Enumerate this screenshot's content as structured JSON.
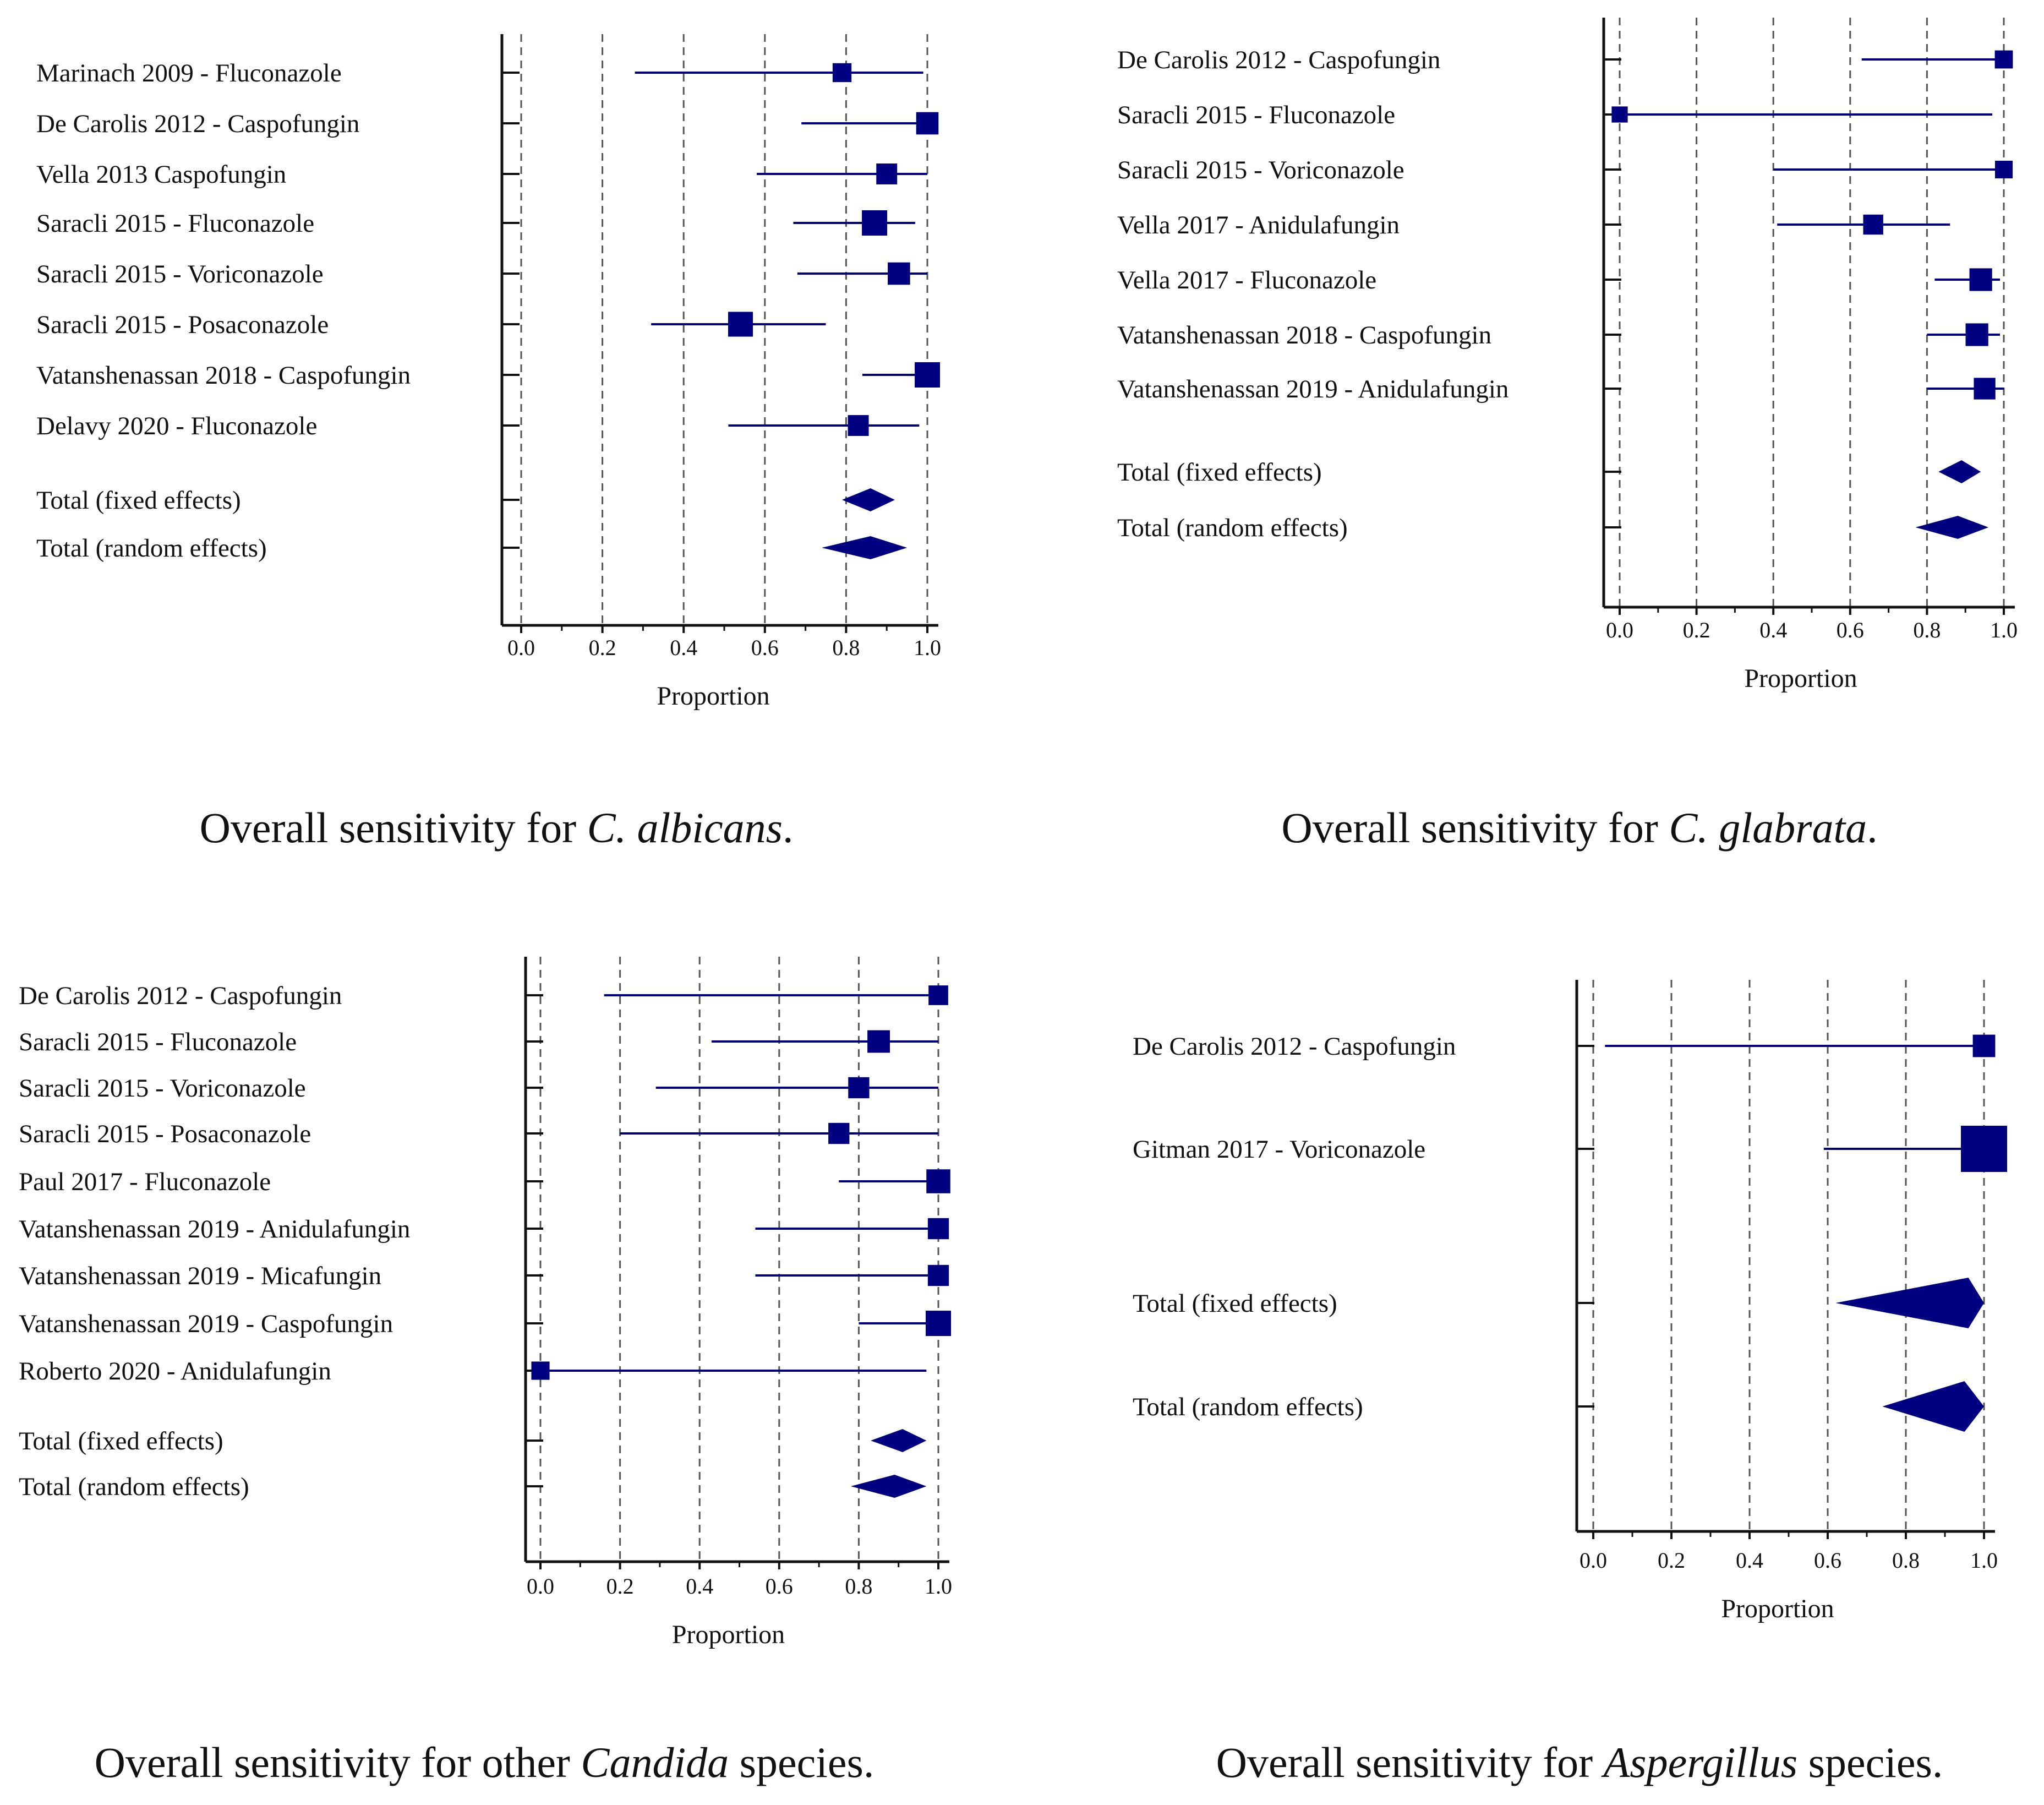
{
  "chart_data": [
    {
      "type": "forest",
      "caption": {
        "prefix": "Overall sensitivity for ",
        "species": "C. albicans",
        "suffix": "."
      },
      "xlabel": "Proportion",
      "xlim": [
        0,
        1
      ],
      "ticks": [
        "0.0",
        "0.2",
        "0.4",
        "0.6",
        "0.8",
        "1.0"
      ],
      "grid": "dashed vertical at 0.2 steps",
      "studies": [
        {
          "label": "Marinach 2009 - Fluconazole",
          "estimate": 0.79,
          "ci": [
            0.28,
            0.99
          ],
          "weight": 0.35
        },
        {
          "label": "De Carolis 2012 - Caspofungin",
          "estimate": 1.0,
          "ci": [
            0.69,
            1.0
          ],
          "weight": 0.7
        },
        {
          "label": "Vella 2013 Caspofungin",
          "estimate": 0.9,
          "ci": [
            0.58,
            1.0
          ],
          "weight": 0.55
        },
        {
          "label": "Saracli 2015 - Fluconazole",
          "estimate": 0.87,
          "ci": [
            0.67,
            0.97
          ],
          "weight": 1.0
        },
        {
          "label": "Saracli 2015 - Voriconazole",
          "estimate": 0.93,
          "ci": [
            0.68,
            1.0
          ],
          "weight": 0.7
        },
        {
          "label": "Saracli 2015 - Posaconazole",
          "estimate": 0.54,
          "ci": [
            0.32,
            0.75
          ],
          "weight": 0.95
        },
        {
          "label": "Vatanshenassan 2018 - Caspofungin",
          "estimate": 1.0,
          "ci": [
            0.84,
            1.0
          ],
          "weight": 1.0
        },
        {
          "label": "Delavy 2020 - Fluconazole",
          "estimate": 0.83,
          "ci": [
            0.51,
            0.98
          ],
          "weight": 0.55
        }
      ],
      "totals": [
        {
          "label": "Total (fixed effects)",
          "estimate": 0.86,
          "ci": [
            0.79,
            0.92
          ]
        },
        {
          "label": "Total (random effects)",
          "estimate": 0.86,
          "ci": [
            0.74,
            0.95
          ]
        }
      ]
    },
    {
      "type": "forest",
      "caption": {
        "prefix": "Overall sensitivity for ",
        "species": "C. glabrata",
        "suffix": "."
      },
      "xlabel": "Proportion",
      "xlim": [
        0,
        1
      ],
      "ticks": [
        "0.0",
        "0.2",
        "0.4",
        "0.6",
        "0.8",
        "1.0"
      ],
      "grid": "dashed vertical at 0.2 steps",
      "studies": [
        {
          "label": "De Carolis 2012 - Caspofungin",
          "estimate": 1.0,
          "ci": [
            0.63,
            1.0
          ],
          "weight": 0.45
        },
        {
          "label": "Saracli 2015 - Fluconazole",
          "estimate": 0.0,
          "ci": [
            0.0,
            0.97
          ],
          "weight": 0.3
        },
        {
          "label": "Saracli 2015 - Voriconazole",
          "estimate": 1.0,
          "ci": [
            0.4,
            1.0
          ],
          "weight": 0.42
        },
        {
          "label": "Vella 2017 - Anidulafungin",
          "estimate": 0.66,
          "ci": [
            0.41,
            0.86
          ],
          "weight": 0.6
        },
        {
          "label": "Vella 2017 - Fluconazole",
          "estimate": 0.94,
          "ci": [
            0.82,
            0.99
          ],
          "weight": 0.8
        },
        {
          "label": "Vatanshenassan 2018 - Caspofungin",
          "estimate": 0.93,
          "ci": [
            0.8,
            0.99
          ],
          "weight": 0.8
        },
        {
          "label": "Vatanshenassan 2019 - Anidulafungin",
          "estimate": 0.95,
          "ci": [
            0.8,
            1.0
          ],
          "weight": 0.72
        }
      ],
      "totals": [
        {
          "label": "Total (fixed effects)",
          "estimate": 0.89,
          "ci": [
            0.83,
            0.94
          ]
        },
        {
          "label": "Total (random effects)",
          "estimate": 0.88,
          "ci": [
            0.77,
            0.96
          ]
        }
      ]
    },
    {
      "type": "forest",
      "caption": {
        "prefix": "Overall sensitivity for other ",
        "species": "Candida",
        "suffix": " species."
      },
      "xlabel": "Proportion",
      "xlim": [
        0,
        1
      ],
      "ticks": [
        "0.0",
        "0.2",
        "0.4",
        "0.6",
        "0.8",
        "1.0"
      ],
      "grid": "dashed vertical at 0.2 steps",
      "studies": [
        {
          "label": "De Carolis 2012 - Caspofungin",
          "estimate": 1.0,
          "ci": [
            0.16,
            1.0
          ],
          "weight": 0.45
        },
        {
          "label": "Saracli 2015 - Fluconazole",
          "estimate": 0.85,
          "ci": [
            0.43,
            1.0
          ],
          "weight": 0.65
        },
        {
          "label": "Saracli 2015 - Voriconazole",
          "estimate": 0.8,
          "ci": [
            0.29,
            1.0
          ],
          "weight": 0.55
        },
        {
          "label": "Saracli 2015 - Posaconazole",
          "estimate": 0.75,
          "ci": [
            0.2,
            1.0
          ],
          "weight": 0.55
        },
        {
          "label": "Paul 2017 - Fluconazole",
          "estimate": 1.0,
          "ci": [
            0.75,
            1.0
          ],
          "weight": 0.75
        },
        {
          "label": "Vatanshenassan 2019 - Anidulafungin",
          "estimate": 1.0,
          "ci": [
            0.54,
            1.0
          ],
          "weight": 0.55
        },
        {
          "label": "Vatanshenassan 2019 - Micafungin",
          "estimate": 1.0,
          "ci": [
            0.54,
            1.0
          ],
          "weight": 0.55
        },
        {
          "label": "Vatanshenassan 2019 - Caspofungin",
          "estimate": 1.0,
          "ci": [
            0.8,
            1.0
          ],
          "weight": 0.85
        },
        {
          "label": "Roberto 2020 - Anidulafungin",
          "estimate": 0.0,
          "ci": [
            0.0,
            0.97
          ],
          "weight": 0.35
        }
      ],
      "totals": [
        {
          "label": "Total (fixed effects)",
          "estimate": 0.91,
          "ci": [
            0.83,
            0.97
          ]
        },
        {
          "label": "Total (random effects)",
          "estimate": 0.89,
          "ci": [
            0.78,
            0.97
          ]
        }
      ]
    },
    {
      "type": "forest",
      "caption": {
        "prefix": "Overall sensitivity for ",
        "species": "Aspergillus",
        "suffix": " species."
      },
      "xlabel": "Proportion",
      "xlim": [
        0,
        1
      ],
      "ticks": [
        "0.0",
        "0.2",
        "0.4",
        "0.6",
        "0.8",
        "1.0"
      ],
      "grid": "dashed vertical at 0.2 steps",
      "studies": [
        {
          "label": "De Carolis 2012 - Caspofungin",
          "estimate": 1.0,
          "ci": [
            0.03,
            1.0
          ],
          "weight": 0.28
        },
        {
          "label": "Gitman 2017 - Voriconazole",
          "estimate": 1.0,
          "ci": [
            0.59,
            1.0
          ],
          "weight": 1.0
        }
      ],
      "totals": [
        {
          "label": "Total (fixed effects)",
          "estimate": 0.96,
          "ci": [
            0.62,
            1.0
          ]
        },
        {
          "label": "Total (random effects)",
          "estimate": 0.95,
          "ci": [
            0.74,
            1.0
          ]
        }
      ]
    }
  ],
  "colors": {
    "marker": "#000080",
    "axis": "#111111",
    "grid": "#555555"
  }
}
